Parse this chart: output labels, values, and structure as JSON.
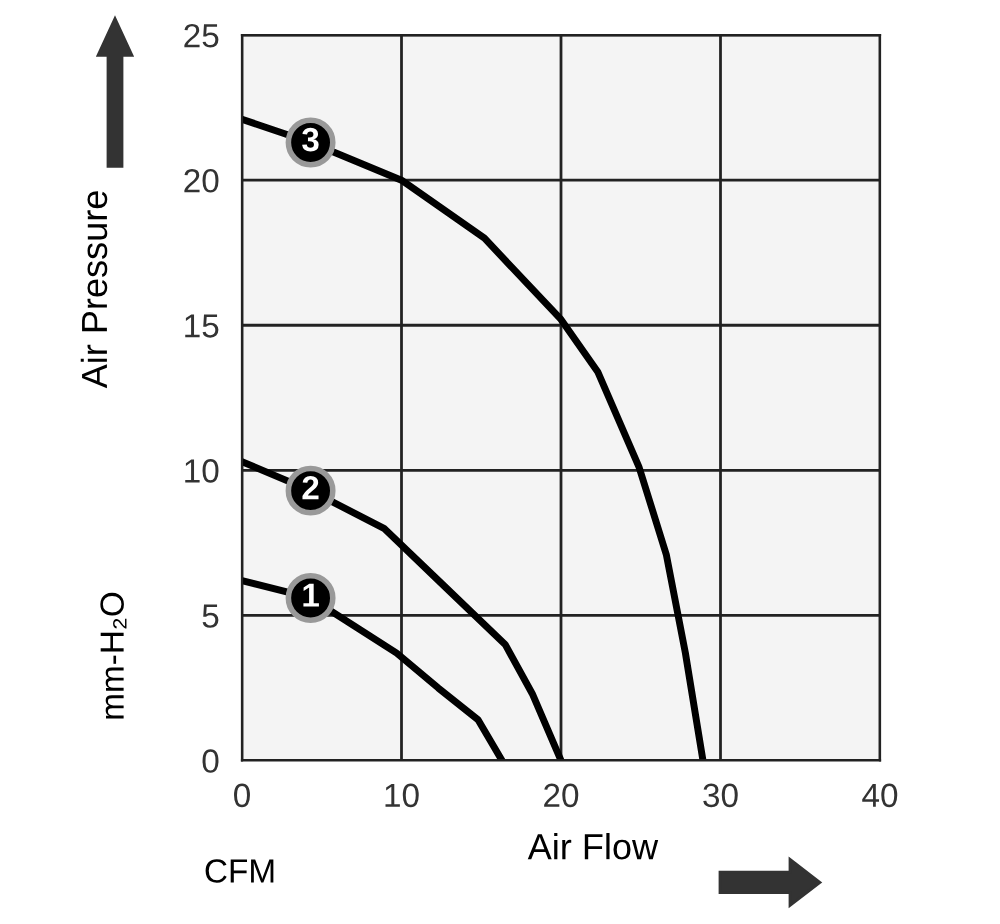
{
  "chart_data": {
    "type": "line",
    "xlabel": "Air Flow",
    "ylabel": "Air Pressure",
    "annotations": [
      "CFM",
      "mm-H₂O"
    ],
    "xlim": [
      0,
      40
    ],
    "ylim": [
      0,
      25
    ],
    "xticks": [
      0,
      10,
      20,
      30,
      40
    ],
    "yticks": [
      0,
      5,
      10,
      15,
      20,
      25
    ],
    "grid": true,
    "marker": "none",
    "line_style": "solid",
    "series": [
      {
        "name": "1",
        "color": "#000000",
        "x": [
          0,
          4.3,
          9.7,
          12.3,
          14.8,
          16.3
        ],
        "values": [
          6.2,
          5.6,
          3.7,
          2.5,
          1.4,
          0
        ]
      },
      {
        "name": "2",
        "color": "#000000",
        "x": [
          0,
          4.3,
          8.9,
          12.7,
          16.5,
          18.2,
          20
        ],
        "values": [
          10.3,
          9.3,
          8.0,
          6.0,
          4.0,
          2.3,
          0
        ]
      },
      {
        "name": "3",
        "color": "#000000",
        "x": [
          0,
          4.3,
          10,
          15.2,
          20,
          22.3,
          24.9,
          26.6,
          27.8,
          28.9
        ],
        "values": [
          22.1,
          21.3,
          20,
          18.0,
          15.2,
          13.4,
          10.1,
          7.1,
          3.7,
          0
        ]
      }
    ]
  }
}
